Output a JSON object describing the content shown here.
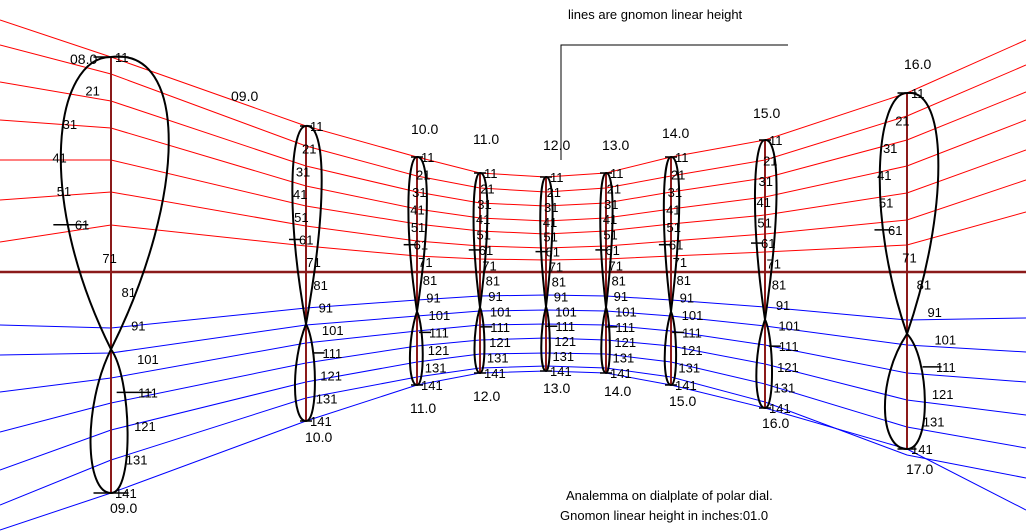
{
  "diagram": {
    "legend_text": "lines are gnomon linear height",
    "caption_line1": "Analemma on dialplate of polar dial.",
    "caption_line2": "Gnomon linear height in inches:01.0",
    "colors": {
      "background": "#ffffff",
      "summer_lines": "#ff0000",
      "winter_lines": "#0000ff",
      "equator": "#8b1a1a",
      "hour_lines": "#8b1a1a",
      "analemma": "#000000"
    },
    "hours": [
      {
        "top": "08.0",
        "bottom": "09.0",
        "marks": [
          "11",
          "21",
          "31",
          "41",
          "51",
          "61",
          "71",
          "81",
          "91",
          "101",
          "111",
          "121",
          "131",
          "141"
        ]
      },
      {
        "top": "09.0",
        "bottom": "10.0",
        "marks": [
          "11",
          "21",
          "31",
          "41",
          "51",
          "61",
          "71",
          "81",
          "91",
          "101",
          "111",
          "121",
          "131",
          "141"
        ]
      },
      {
        "top": "10.0",
        "bottom": "11.0",
        "marks": [
          "11",
          "21",
          "31",
          "41",
          "51",
          "61",
          "71",
          "81",
          "91",
          "101",
          "111",
          "121",
          "131",
          "141"
        ]
      },
      {
        "top": "11.0",
        "bottom": "12.0",
        "marks": [
          "11",
          "21",
          "31",
          "41",
          "51",
          "61",
          "71",
          "81",
          "91",
          "101",
          "111",
          "121",
          "131",
          "141"
        ]
      },
      {
        "top": "12.0",
        "bottom": "13.0",
        "marks": [
          "11",
          "21",
          "31",
          "41",
          "51",
          "61",
          "71",
          "81",
          "91",
          "101",
          "111",
          "121",
          "131",
          "141"
        ]
      },
      {
        "top": "13.0",
        "bottom": "14.0",
        "marks": [
          "11",
          "21",
          "31",
          "41",
          "51",
          "61",
          "71",
          "81",
          "91",
          "101",
          "111",
          "121",
          "131",
          "141"
        ]
      },
      {
        "top": "14.0",
        "bottom": "15.0",
        "marks": [
          "11",
          "21",
          "31",
          "41",
          "51",
          "61",
          "71",
          "81",
          "91",
          "101",
          "111",
          "121",
          "131",
          "141"
        ]
      },
      {
        "top": "15.0",
        "bottom": "16.0",
        "marks": [
          "11",
          "21",
          "31",
          "41",
          "51",
          "61",
          "71",
          "81",
          "91",
          "101",
          "111",
          "121",
          "131",
          "141"
        ]
      },
      {
        "top": "16.0",
        "bottom": "17.0",
        "marks": [
          "11",
          "21",
          "31",
          "41",
          "51",
          "61",
          "71",
          "81",
          "91",
          "101",
          "111",
          "121",
          "131",
          "141"
        ]
      }
    ]
  }
}
